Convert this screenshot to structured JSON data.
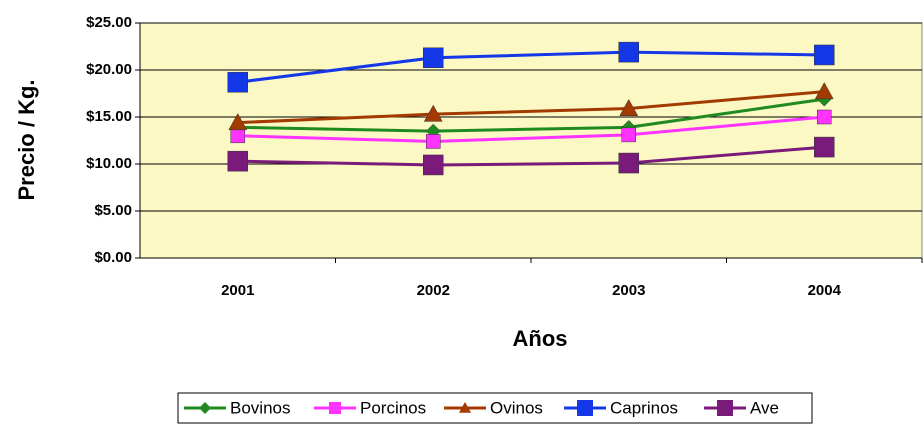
{
  "chart_data": {
    "type": "line",
    "x_label": "Años",
    "y_label": "Precio / Kg.",
    "categories": [
      "2001",
      "2002",
      "2003",
      "2004"
    ],
    "series": [
      {
        "name": "Bovinos",
        "color": "#1f8a1f",
        "marker": "diamond",
        "values": [
          13.9,
          13.5,
          13.9,
          16.9
        ]
      },
      {
        "name": "Porcinos",
        "color": "#ff33ff",
        "marker": "square",
        "values": [
          13.0,
          12.4,
          13.1,
          15.0
        ]
      },
      {
        "name": "Ovinos",
        "color": "#a33a00",
        "marker": "triangle",
        "values": [
          14.4,
          15.3,
          15.9,
          17.7
        ]
      },
      {
        "name": "Caprinos",
        "color": "#1437e8",
        "marker": "square",
        "values": [
          18.7,
          21.3,
          21.9,
          21.6
        ]
      },
      {
        "name": "Ave",
        "color": "#7a1a7a",
        "marker": "square",
        "values": [
          10.3,
          9.9,
          10.1,
          11.8
        ]
      }
    ],
    "ylim": [
      0,
      25
    ],
    "yticks": [
      {
        "value": 0,
        "label": "$0.00"
      },
      {
        "value": 5,
        "label": "$5.00"
      },
      {
        "value": 10,
        "label": "$10.00"
      },
      {
        "value": 15,
        "label": "$15.00"
      },
      {
        "value": 20,
        "label": "$20.00"
      },
      {
        "value": 25,
        "label": "$25.00"
      }
    ],
    "grid": true,
    "legend": "bottom",
    "plot_background": "#fbf8c4"
  }
}
